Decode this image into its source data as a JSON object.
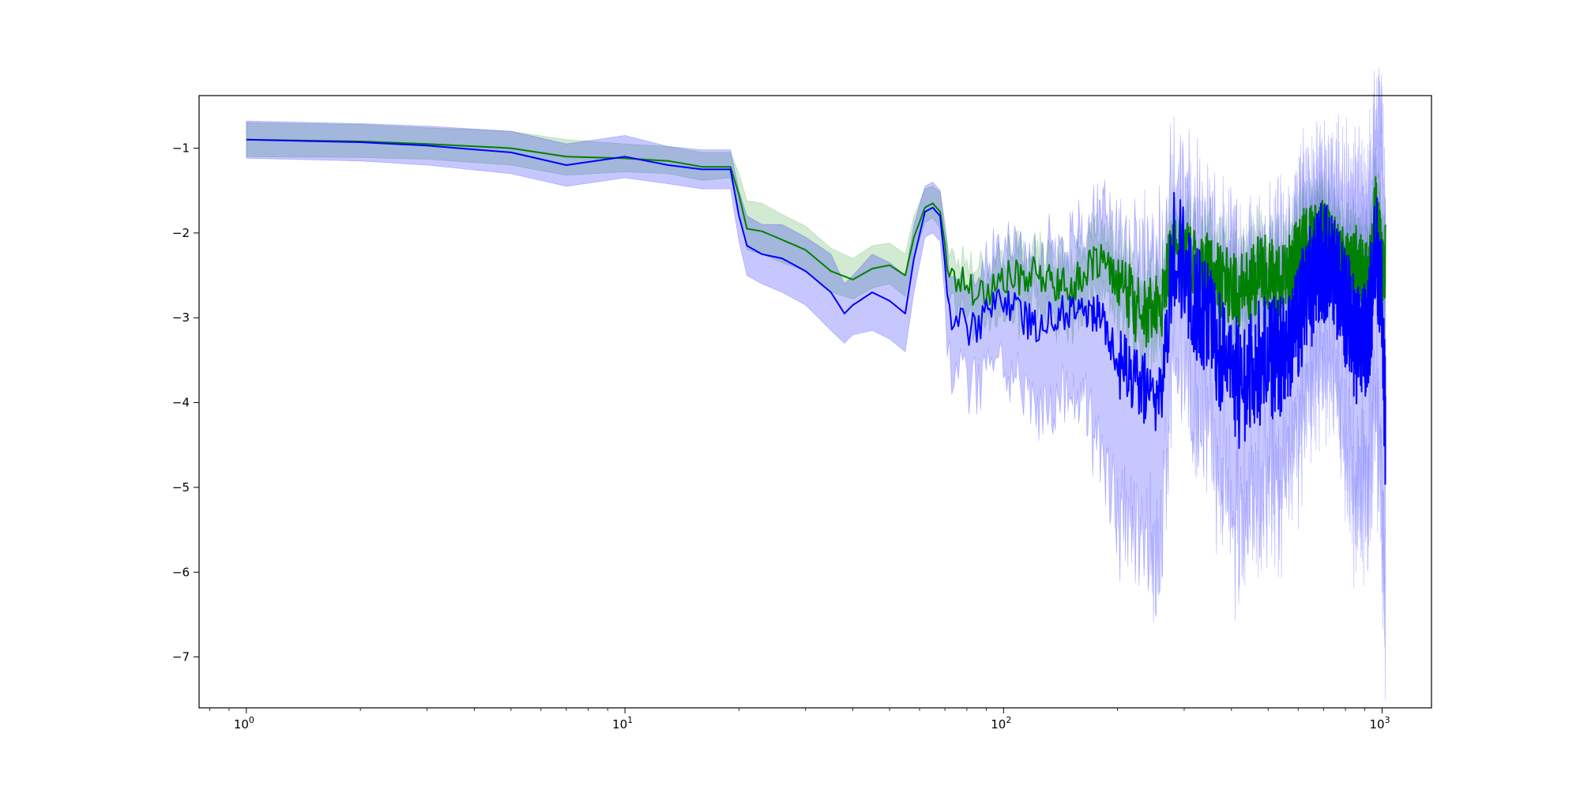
{
  "chart_data": {
    "type": "line",
    "title": "",
    "xlabel": "",
    "ylabel": "",
    "x_scale": "log",
    "xlim": [
      0.75,
      1350
    ],
    "ylim": [
      -7.6,
      -0.38
    ],
    "grid": false,
    "legend": "none",
    "x_ticks": [
      {
        "value": 1,
        "base": "10",
        "exp": "0"
      },
      {
        "value": 10,
        "base": "10",
        "exp": "1"
      },
      {
        "value": 100,
        "base": "10",
        "exp": "2"
      },
      {
        "value": 1000,
        "base": "10",
        "exp": "3"
      }
    ],
    "y_ticks": [
      {
        "value": -1,
        "label": "−1"
      },
      {
        "value": -2,
        "label": "−2"
      },
      {
        "value": -3,
        "label": "−3"
      },
      {
        "value": -4,
        "label": "−4"
      },
      {
        "value": -5,
        "label": "−5"
      },
      {
        "value": -6,
        "label": "−6"
      },
      {
        "value": -7,
        "label": "−7"
      }
    ],
    "series": [
      {
        "color": "#008000",
        "band_color": "#2ca02c",
        "x": [
          1,
          2,
          3,
          5,
          7,
          10,
          13,
          16,
          19,
          20,
          21,
          23,
          26,
          30,
          35,
          40,
          45,
          50,
          55,
          58,
          62,
          65,
          68,
          72,
          80,
          90,
          100,
          120,
          150,
          180,
          200,
          230,
          260,
          280,
          320,
          360,
          420,
          480,
          550,
          620,
          700,
          780,
          850,
          920,
          960,
          1000,
          1020
        ],
        "y": [
          -0.9,
          -0.92,
          -0.95,
          -1.0,
          -1.1,
          -1.12,
          -1.15,
          -1.22,
          -1.22,
          -1.55,
          -1.95,
          -1.98,
          -2.08,
          -2.2,
          -2.45,
          -2.55,
          -2.42,
          -2.38,
          -2.5,
          -2.05,
          -1.7,
          -1.65,
          -1.75,
          -2.5,
          -2.6,
          -2.7,
          -2.55,
          -2.5,
          -2.65,
          -2.3,
          -2.6,
          -2.95,
          -2.9,
          -2.15,
          -2.3,
          -2.5,
          -2.7,
          -2.45,
          -2.6,
          -2.15,
          -2.05,
          -2.3,
          -2.35,
          -2.6,
          -1.75,
          -2.4,
          -2.3
        ],
        "lower": [
          -1.1,
          -1.11,
          -1.13,
          -1.2,
          -1.32,
          -1.28,
          -1.3,
          -1.38,
          -1.35,
          -1.72,
          -2.2,
          -2.25,
          -2.35,
          -2.45,
          -2.7,
          -2.78,
          -2.65,
          -2.6,
          -2.75,
          -2.28,
          -1.88,
          -1.82,
          -1.95,
          -2.75,
          -2.85,
          -3.0,
          -2.85,
          -2.8,
          -2.95,
          -2.6,
          -2.9,
          -3.25,
          -3.2,
          -2.45,
          -2.6,
          -2.8,
          -3.05,
          -2.75,
          -2.9,
          -2.45,
          -2.35,
          -2.6,
          -2.65,
          -2.9,
          -2.05,
          -2.7,
          -2.6
        ],
        "upper": [
          -0.7,
          -0.72,
          -0.76,
          -0.8,
          -0.9,
          -0.95,
          -0.98,
          -1.05,
          -1.05,
          -1.3,
          -1.62,
          -1.65,
          -1.78,
          -1.92,
          -2.18,
          -2.3,
          -2.15,
          -2.12,
          -2.25,
          -1.8,
          -1.48,
          -1.45,
          -1.52,
          -2.2,
          -2.3,
          -2.35,
          -2.2,
          -2.15,
          -2.3,
          -1.95,
          -2.25,
          -2.6,
          -2.55,
          -1.8,
          -1.95,
          -2.15,
          -2.35,
          -2.1,
          -2.25,
          -1.8,
          -1.7,
          -1.95,
          -2.0,
          -2.25,
          -1.35,
          -2.05,
          -1.95
        ]
      },
      {
        "color": "#0000ff",
        "band_color": "#0000ff",
        "x": [
          1,
          2,
          3,
          5,
          7,
          10,
          13,
          16,
          19,
          20,
          21,
          23,
          26,
          30,
          35,
          38,
          40,
          45,
          50,
          55,
          58,
          62,
          65,
          68,
          72,
          80,
          90,
          100,
          120,
          150,
          180,
          200,
          220,
          240,
          260,
          280,
          320,
          360,
          420,
          480,
          550,
          620,
          700,
          780,
          850,
          920,
          960,
          1000,
          1020
        ],
        "y": [
          -0.9,
          -0.93,
          -0.97,
          -1.05,
          -1.2,
          -1.1,
          -1.2,
          -1.25,
          -1.25,
          -1.8,
          -2.15,
          -2.25,
          -2.3,
          -2.45,
          -2.7,
          -2.95,
          -2.85,
          -2.7,
          -2.8,
          -2.95,
          -2.3,
          -1.75,
          -1.7,
          -1.8,
          -2.9,
          -3.15,
          -3.0,
          -2.75,
          -3.1,
          -2.9,
          -2.95,
          -3.5,
          -3.75,
          -3.85,
          -3.95,
          -2.05,
          -2.8,
          -3.2,
          -3.8,
          -3.5,
          -3.4,
          -2.8,
          -2.3,
          -2.7,
          -3.3,
          -3.2,
          -2.15,
          -2.8,
          -4.35
        ],
        "lower": [
          -1.12,
          -1.15,
          -1.2,
          -1.3,
          -1.45,
          -1.35,
          -1.42,
          -1.48,
          -1.48,
          -2.1,
          -2.5,
          -2.6,
          -2.7,
          -2.85,
          -3.15,
          -3.3,
          -3.2,
          -3.15,
          -3.25,
          -3.4,
          -2.7,
          -2.05,
          -2.0,
          -2.1,
          -3.4,
          -3.65,
          -3.55,
          -3.35,
          -3.85,
          -3.75,
          -4.1,
          -4.95,
          -5.2,
          -5.4,
          -5.6,
          -2.9,
          -3.8,
          -4.3,
          -5.2,
          -4.8,
          -4.6,
          -3.9,
          -3.2,
          -3.8,
          -4.8,
          -4.7,
          -3.5,
          -5.0,
          -6.1
        ],
        "upper": [
          -0.68,
          -0.71,
          -0.74,
          -0.8,
          -0.95,
          -0.85,
          -0.98,
          -1.02,
          -1.02,
          -1.5,
          -1.8,
          -1.9,
          -1.9,
          -2.05,
          -2.25,
          -2.6,
          -2.5,
          -2.25,
          -2.35,
          -2.5,
          -1.9,
          -1.45,
          -1.4,
          -1.5,
          -2.4,
          -2.65,
          -2.45,
          -2.15,
          -2.35,
          -2.05,
          -1.8,
          -2.05,
          -2.3,
          -2.3,
          -2.3,
          -1.2,
          -1.8,
          -2.1,
          -2.4,
          -2.2,
          -2.2,
          -1.7,
          -1.4,
          -1.6,
          -1.8,
          -1.7,
          -0.9,
          -0.6,
          -2.6
        ]
      }
    ]
  }
}
